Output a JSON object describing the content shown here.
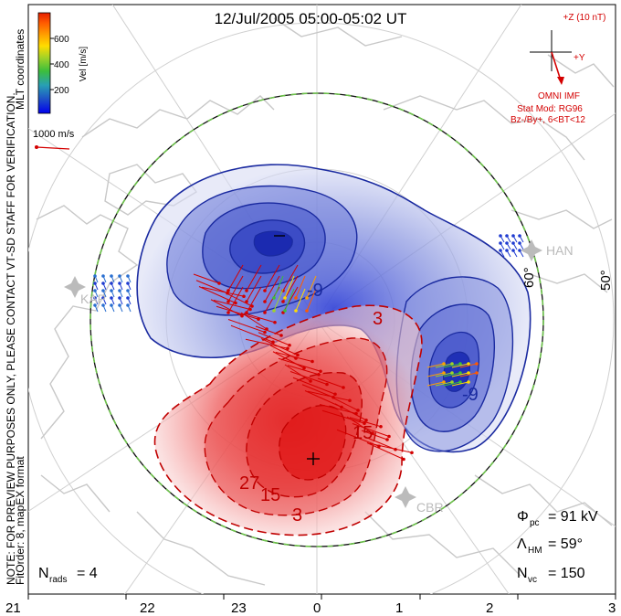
{
  "title": "12/Jul/2005 05:00-05:02 UT",
  "colorbar": {
    "label": "Vel [m/s]",
    "ticks": [
      "600",
      "400",
      "200"
    ],
    "stops": [
      "#0000ee",
      "#1e50c8",
      "#28a0b4",
      "#3cbe3c",
      "#a0d228",
      "#ffdc00",
      "#ffa000",
      "#ff5a00",
      "#e61e00"
    ]
  },
  "scale_vector": {
    "label": "1000 m/s",
    "color": "#d40000"
  },
  "side_note": "NOTE: FOR PREVIEW PURPOSES ONLY, PLEASE CONTACT VT-SD STAFF FOR VERIFICATION.",
  "coord_note": "MLT coordinates",
  "fit_note": "FitOrder: 8,  mapEX format",
  "imf": {
    "z_label": "+Z (10 nT)",
    "y_label": "+Y",
    "source": "OMNI IMF",
    "model": "Stat Mod: RG96",
    "condition": "Bz-/By+, 6<BT<12",
    "color": "#d40000"
  },
  "lat_labels": [
    "60°",
    "50°"
  ],
  "contour_labels": [
    {
      "text": "-9",
      "color": "#1a2aa0"
    },
    {
      "text": "-9",
      "color": "#1a2aa0"
    },
    {
      "text": "3",
      "color": "#c00000"
    },
    {
      "text": "15",
      "color": "#c00000"
    },
    {
      "text": "27",
      "color": "#c00000"
    },
    {
      "text": "15",
      "color": "#c00000"
    },
    {
      "text": "3",
      "color": "#c00000"
    }
  ],
  "stations": [
    "HAN",
    "CBR",
    "KAP"
  ],
  "stats": {
    "pcp_sym": "Φ",
    "pcp_sub": "pc",
    "pcp_val": "=  91 kV",
    "hm_sym": "Λ",
    "hm_sub": "HM",
    "hm_val": "=  59°",
    "nvc_sym": "N",
    "nvc_sub": "vc",
    "nvc_val": "=  150",
    "nrads_sym": "N",
    "nrads_sub": "rads",
    "nrads_val": "=  4"
  },
  "mlt_labels": [
    "21",
    "22",
    "23",
    "0",
    "1",
    "2",
    "3"
  ],
  "colors": {
    "negative_cell": "#1a2aa0",
    "positive_cell": "#c00000",
    "hm_boundary": "#6cc24a",
    "map": "#c8c8c8"
  }
}
